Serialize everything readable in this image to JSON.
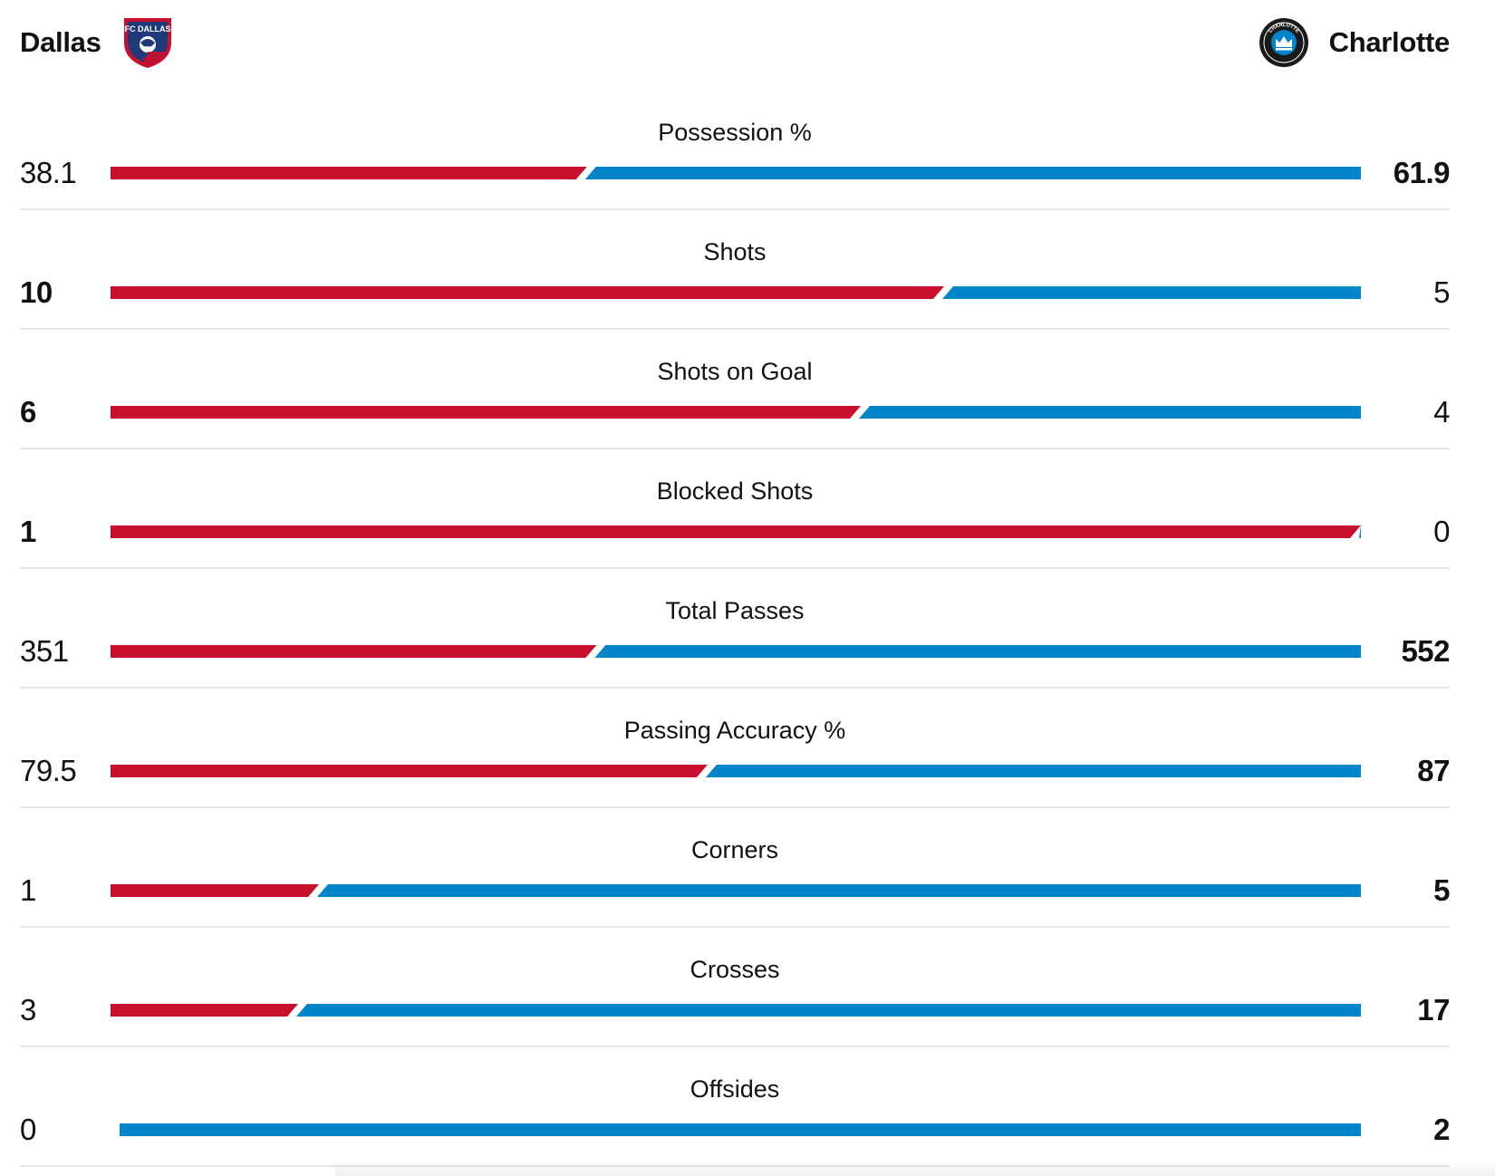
{
  "header": {
    "home_team": "Dallas",
    "away_team": "Charlotte",
    "home_crest_text": "FC DALLAS",
    "away_crest_text": "CHARLOTTE FOOTBALL CLUB"
  },
  "colors": {
    "home": "#c8102e",
    "away": "#0085ca",
    "divider": "#e4e4e4"
  },
  "stats": [
    {
      "label": "Possession %",
      "home": "38.1",
      "away": "61.9",
      "home_num": 38.1,
      "away_num": 61.9
    },
    {
      "label": "Shots",
      "home": "10",
      "away": "5",
      "home_num": 10,
      "away_num": 5
    },
    {
      "label": "Shots on Goal",
      "home": "6",
      "away": "4",
      "home_num": 6,
      "away_num": 4
    },
    {
      "label": "Blocked Shots",
      "home": "1",
      "away": "0",
      "home_num": 1,
      "away_num": 0
    },
    {
      "label": "Total Passes",
      "home": "351",
      "away": "552",
      "home_num": 351,
      "away_num": 552
    },
    {
      "label": "Passing Accuracy %",
      "home": "79.5",
      "away": "87",
      "home_num": 79.5,
      "away_num": 87
    },
    {
      "label": "Corners",
      "home": "1",
      "away": "5",
      "home_num": 1,
      "away_num": 5
    },
    {
      "label": "Crosses",
      "home": "3",
      "away": "17",
      "home_num": 3,
      "away_num": 17
    },
    {
      "label": "Offsides",
      "home": "0",
      "away": "2",
      "home_num": 0,
      "away_num": 2
    }
  ]
}
